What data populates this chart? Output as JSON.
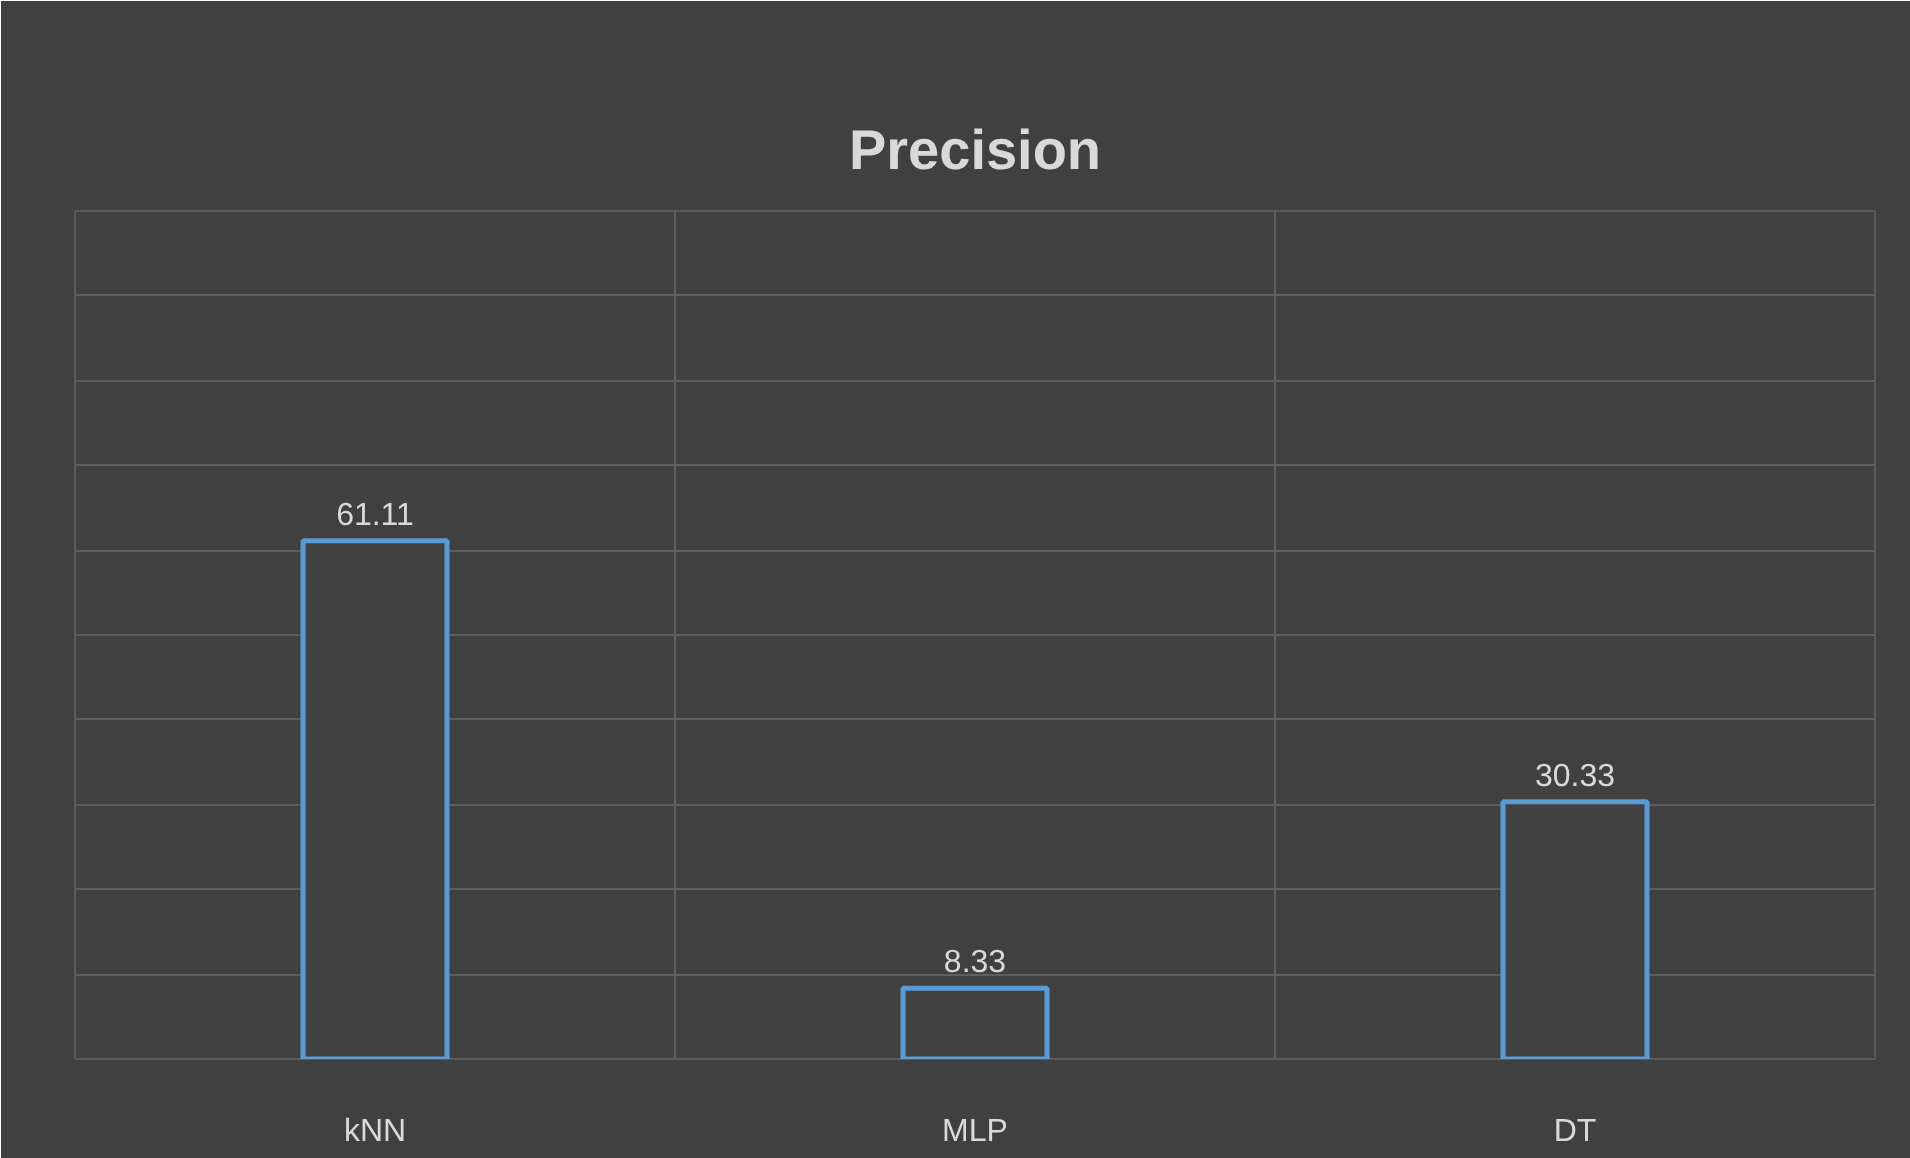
{
  "chart_data": {
    "type": "bar",
    "title": "Precision",
    "categories": [
      "kNN",
      "MLP",
      "DT"
    ],
    "values": [
      61.11,
      8.33,
      30.33
    ],
    "value_labels": [
      "61.11",
      "8.33",
      "30.33"
    ],
    "color": "#5b9bd5",
    "ylim": [
      0,
      100
    ],
    "grid": true,
    "tick_labels": "x"
  }
}
